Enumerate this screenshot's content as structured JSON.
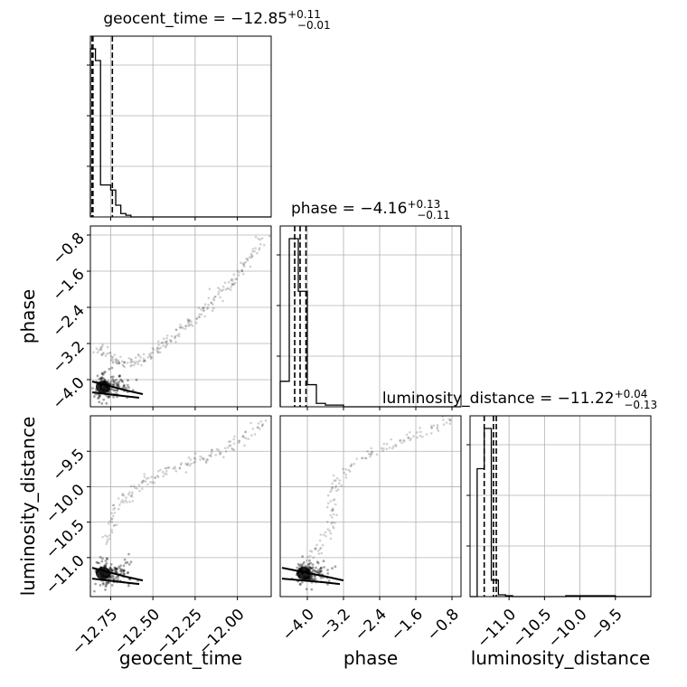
{
  "chart_data": {
    "type": "scatter",
    "parameters": [
      {
        "key": "geocent_time",
        "label": "geocent_time",
        "title": "geocent_time = −12.85",
        "title_sup": "+0.11",
        "title_sub": "−0.01",
        "range": [
          -12.87,
          -11.8
        ],
        "ticks": [
          -12.75,
          -12.5,
          -12.25,
          -12.0
        ],
        "tick_labels": [
          "−12.75",
          "−12.50",
          "−12.25",
          "−12.00"
        ],
        "quantiles": [
          -12.86,
          -12.855,
          -12.74
        ],
        "hist_edges": [
          -12.87,
          -12.84,
          -12.81,
          -12.78,
          -12.75,
          -12.72,
          -12.69,
          -12.66,
          -12.63,
          -12.6,
          -12.57,
          -12.54,
          -12.51,
          -11.8
        ],
        "hist_counts": [
          1.0,
          0.93,
          0.19,
          0.19,
          0.16,
          0.07,
          0.02,
          0.01,
          0.0,
          0.0,
          0.0,
          0.0,
          0.0
        ]
      },
      {
        "key": "phase",
        "label": "phase",
        "title": "phase = −4.16",
        "title_sup": "+0.13",
        "title_sub": "−0.11",
        "range": [
          -4.6,
          -0.6
        ],
        "ticks": [
          -4.0,
          -3.2,
          -2.4,
          -1.6,
          -0.8
        ],
        "tick_labels": [
          "−4.0",
          "−3.2",
          "−2.4",
          "−1.6",
          "−0.8"
        ],
        "quantiles": [
          -4.28,
          -4.16,
          -4.03
        ],
        "hist_edges": [
          -4.6,
          -4.4,
          -4.2,
          -4.0,
          -3.8,
          -3.6,
          -3.4,
          -3.2,
          -3.0,
          -0.6
        ],
        "hist_counts": [
          0.15,
          0.99,
          0.68,
          0.13,
          0.02,
          0.01,
          0.01,
          0.0,
          0.0
        ]
      },
      {
        "key": "luminosity_distance",
        "label": "luminosity_distance",
        "title": "luminosity_distance = −11.22",
        "title_sup": "+0.04",
        "title_sub": "−0.13",
        "range": [
          -11.55,
          -9.0
        ],
        "ticks": [
          -11.0,
          -10.5,
          -10.0,
          -9.5
        ],
        "tick_labels": [
          "−11.0",
          "−10.5",
          "−10.0",
          "−9.5"
        ],
        "quantiles": [
          -11.35,
          -11.22,
          -11.18
        ],
        "hist_edges": [
          -11.55,
          -11.45,
          -11.35,
          -11.25,
          -11.15,
          -11.05,
          -10.95,
          -10.2,
          -10.05,
          -9.5,
          -9.0
        ],
        "hist_counts": [
          0.0,
          0.7,
          0.92,
          0.09,
          0.01,
          0.005,
          0.0,
          0.005,
          0.005,
          0.0
        ]
      }
    ],
    "y_ticks": {
      "phase": [
        -4.0,
        -3.2,
        -2.4,
        -1.6,
        -0.8
      ],
      "phase_labels": [
        "−4.0",
        "−3.2",
        "−2.4",
        "−1.6",
        "−0.8"
      ],
      "luminosity_distance": [
        -11.0,
        -10.5,
        -10.0,
        -9.5
      ],
      "luminosity_distance_labels": [
        "−11.0",
        "−10.5",
        "−10.0",
        "−9.5"
      ]
    },
    "trail_phase_vs_time": [
      [
        -12.84,
        -3.4
      ],
      [
        -12.8,
        -3.35
      ],
      [
        -12.76,
        -3.5
      ],
      [
        -12.72,
        -3.55
      ],
      [
        -12.68,
        -3.6
      ],
      [
        -12.64,
        -3.62
      ],
      [
        -12.6,
        -3.6
      ],
      [
        -12.56,
        -3.55
      ],
      [
        -12.52,
        -3.45
      ],
      [
        -12.48,
        -3.35
      ],
      [
        -12.44,
        -3.2
      ],
      [
        -12.4,
        -3.1
      ],
      [
        -12.36,
        -3.0
      ],
      [
        -12.32,
        -2.85
      ],
      [
        -12.28,
        -2.75
      ],
      [
        -12.24,
        -2.6
      ],
      [
        -12.2,
        -2.45
      ],
      [
        -12.16,
        -2.3
      ],
      [
        -12.12,
        -2.15
      ],
      [
        -12.08,
        -2.0
      ],
      [
        -12.04,
        -1.85
      ],
      [
        -12.0,
        -1.7
      ],
      [
        -11.96,
        -1.5
      ],
      [
        -11.92,
        -1.3
      ],
      [
        -11.88,
        -1.05
      ],
      [
        -11.84,
        -0.85
      ]
    ],
    "trail_dist_vs_time": [
      [
        -12.78,
        -10.8
      ],
      [
        -12.76,
        -10.6
      ],
      [
        -12.74,
        -10.4
      ],
      [
        -12.7,
        -10.25
      ],
      [
        -12.66,
        -10.15
      ],
      [
        -12.62,
        -10.05
      ],
      [
        -12.56,
        -9.95
      ],
      [
        -12.5,
        -9.88
      ],
      [
        -12.44,
        -9.8
      ],
      [
        -12.38,
        -9.74
      ],
      [
        -12.32,
        -9.68
      ],
      [
        -12.26,
        -9.63
      ],
      [
        -12.2,
        -9.58
      ],
      [
        -12.14,
        -9.53
      ],
      [
        -12.08,
        -9.47
      ],
      [
        -12.02,
        -9.4
      ],
      [
        -11.96,
        -9.32
      ],
      [
        -11.9,
        -9.2
      ],
      [
        -11.84,
        -9.08
      ]
    ],
    "trail_dist_vs_phase": [
      [
        -4.0,
        -11.0
      ],
      [
        -3.8,
        -10.9
      ],
      [
        -3.6,
        -10.75
      ],
      [
        -3.45,
        -10.55
      ],
      [
        -3.4,
        -10.35
      ],
      [
        -3.5,
        -10.15
      ],
      [
        -3.4,
        -9.95
      ],
      [
        -3.2,
        -9.8
      ],
      [
        -2.9,
        -9.65
      ],
      [
        -2.6,
        -9.55
      ],
      [
        -2.3,
        -9.47
      ],
      [
        -2.0,
        -9.38
      ],
      [
        -1.7,
        -9.3
      ],
      [
        -1.4,
        -9.22
      ],
      [
        -1.1,
        -9.12
      ],
      [
        -0.8,
        -9.02
      ]
    ]
  }
}
